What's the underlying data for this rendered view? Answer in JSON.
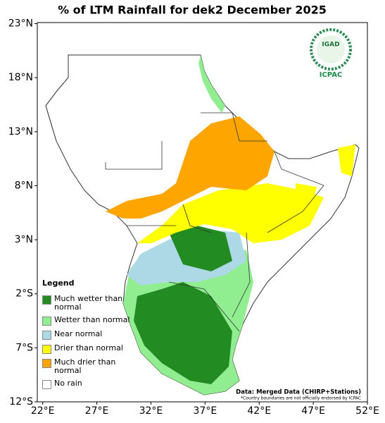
{
  "title": "% of LTM Rainfall for dek2 December 2025",
  "xlim": [
    21.5,
    52
  ],
  "ylim": [
    -12,
    23.1
  ],
  "xticks": [
    {
      "value": 22,
      "label": "22°E"
    },
    {
      "value": 27,
      "label": "27°E"
    },
    {
      "value": 32,
      "label": "32°E"
    },
    {
      "value": 37,
      "label": "37°E"
    },
    {
      "value": 42,
      "label": "42°E"
    },
    {
      "value": 47,
      "label": "47°E"
    },
    {
      "value": 52,
      "label": "52°E"
    }
  ],
  "yticks": [
    {
      "value": 23,
      "label": "23°N"
    },
    {
      "value": 18,
      "label": "18°N"
    },
    {
      "value": 13,
      "label": "13°N"
    },
    {
      "value": 8,
      "label": "8°N"
    },
    {
      "value": 3,
      "label": "3°N"
    },
    {
      "value": -2,
      "label": "2°S"
    },
    {
      "value": -7,
      "label": "7°S"
    },
    {
      "value": -12,
      "label": "12°S"
    }
  ],
  "legend": {
    "title": "Legend",
    "items": [
      {
        "label": "Much wetter than normal",
        "color": "#228b22"
      },
      {
        "label": "Wetter than normal",
        "color": "#90ee90"
      },
      {
        "label": "Near normal",
        "color": "#add8e6"
      },
      {
        "label": "Drier than normal",
        "color": "#ffff00"
      },
      {
        "label": "Much drier than normal",
        "color": "#ffa500"
      },
      {
        "label": "No rain",
        "color": "#ffffff"
      }
    ]
  },
  "source": "Data: Merged Data (CHIRP+Stations)",
  "footnote": "*Country boundaries are not officially endorsed by ICPAC",
  "logo": {
    "name": "IGAD",
    "org": "ICPAC"
  }
}
